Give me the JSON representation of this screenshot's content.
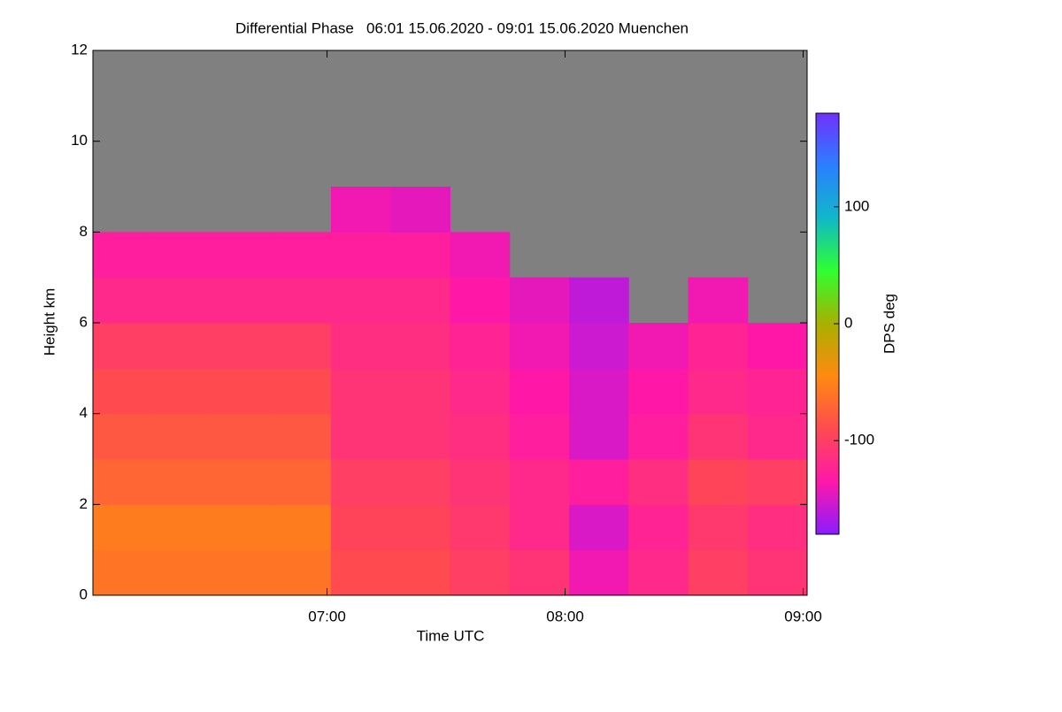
{
  "chart_data": {
    "type": "heatmap",
    "title": "Differential Phase   06:01 15.06.2020 - 09:01 15.06.2020 Muenchen",
    "x_label": "Time UTC",
    "y_label": "Height km",
    "colorbar_label": "DPS deg",
    "x_edges": [
      "06:01",
      "06:16",
      "06:31",
      "06:46",
      "07:01",
      "07:16",
      "07:31",
      "07:46",
      "08:01",
      "08:16",
      "08:31",
      "08:46",
      "09:01"
    ],
    "y_edges": [
      0,
      1,
      2,
      3,
      4,
      5,
      6,
      7,
      8,
      9,
      10,
      11,
      12
    ],
    "z": [
      [
        -60,
        -60,
        -60,
        -60,
        -90,
        -90,
        -100,
        -110,
        -140,
        -120,
        -100,
        -110
      ],
      [
        -55,
        -55,
        -55,
        -55,
        -95,
        -95,
        -105,
        -120,
        -150,
        -125,
        -105,
        -115
      ],
      [
        -70,
        -70,
        -70,
        -70,
        -100,
        -100,
        -110,
        -120,
        -130,
        -115,
        -95,
        -100
      ],
      [
        -80,
        -80,
        -80,
        -80,
        -110,
        -110,
        -115,
        -130,
        -150,
        -130,
        -110,
        -120
      ],
      [
        -90,
        -90,
        -90,
        -90,
        -110,
        -110,
        -120,
        -135,
        -150,
        -135,
        -120,
        -125
      ],
      [
        -100,
        -100,
        -100,
        -100,
        -115,
        -115,
        -125,
        -140,
        -155,
        -140,
        -125,
        -135
      ],
      [
        -120,
        -120,
        -120,
        -120,
        -120,
        -120,
        -135,
        -145,
        -160,
        null,
        -140,
        null
      ],
      [
        -130,
        -130,
        -130,
        -130,
        -130,
        -130,
        -140,
        null,
        null,
        null,
        null,
        null
      ],
      [
        null,
        null,
        null,
        null,
        -140,
        -145,
        null,
        null,
        null,
        null,
        null,
        null
      ],
      [
        null,
        null,
        null,
        null,
        null,
        null,
        null,
        null,
        null,
        null,
        null,
        null
      ],
      [
        null,
        null,
        null,
        null,
        null,
        null,
        null,
        null,
        null,
        null,
        null,
        null
      ],
      [
        null,
        null,
        null,
        null,
        null,
        null,
        null,
        null,
        null,
        null,
        null,
        null
      ]
    ],
    "xlim": [
      "06:01",
      "09:01"
    ],
    "xticks": [
      "07:00",
      "08:00",
      "09:00"
    ],
    "ylim": [
      0,
      12
    ],
    "yticks": [
      0,
      2,
      4,
      6,
      8,
      10,
      12
    ],
    "zlim": [
      -180,
      180
    ],
    "zticks": [
      100,
      0,
      -100
    ],
    "colorscale": [
      "#8a1cff",
      "#ff18a8",
      "#ff4a50",
      "#ff8a10",
      "#a8b000",
      "#30ff30",
      "#10b8c8",
      "#2a80ff",
      "#7030ff"
    ],
    "missing_color": "#808080"
  }
}
